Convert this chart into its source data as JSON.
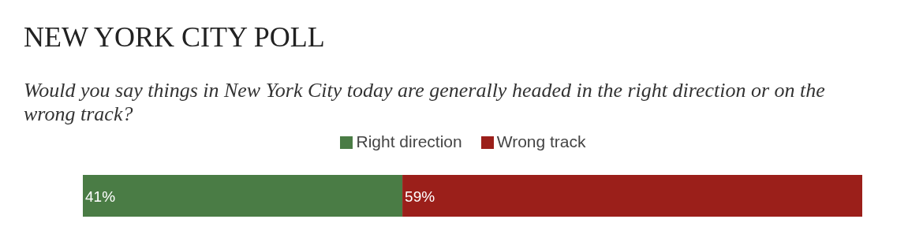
{
  "chart_data": {
    "type": "bar",
    "orientation": "horizontal",
    "stacked": true,
    "title": "NEW YORK CITY POLL",
    "subtitle": "Would you say things in New York City today are generally headed in the right direction or on the wrong track?",
    "categories": [
      null
    ],
    "legend": "top",
    "series": [
      {
        "name": "Right direction",
        "color": "#4a7c45",
        "values": [
          41
        ],
        "value_labels": [
          "41%"
        ]
      },
      {
        "name": "Wrong track",
        "color": "#9b1f1a",
        "values": [
          59
        ],
        "value_labels": [
          "59%"
        ]
      }
    ]
  }
}
